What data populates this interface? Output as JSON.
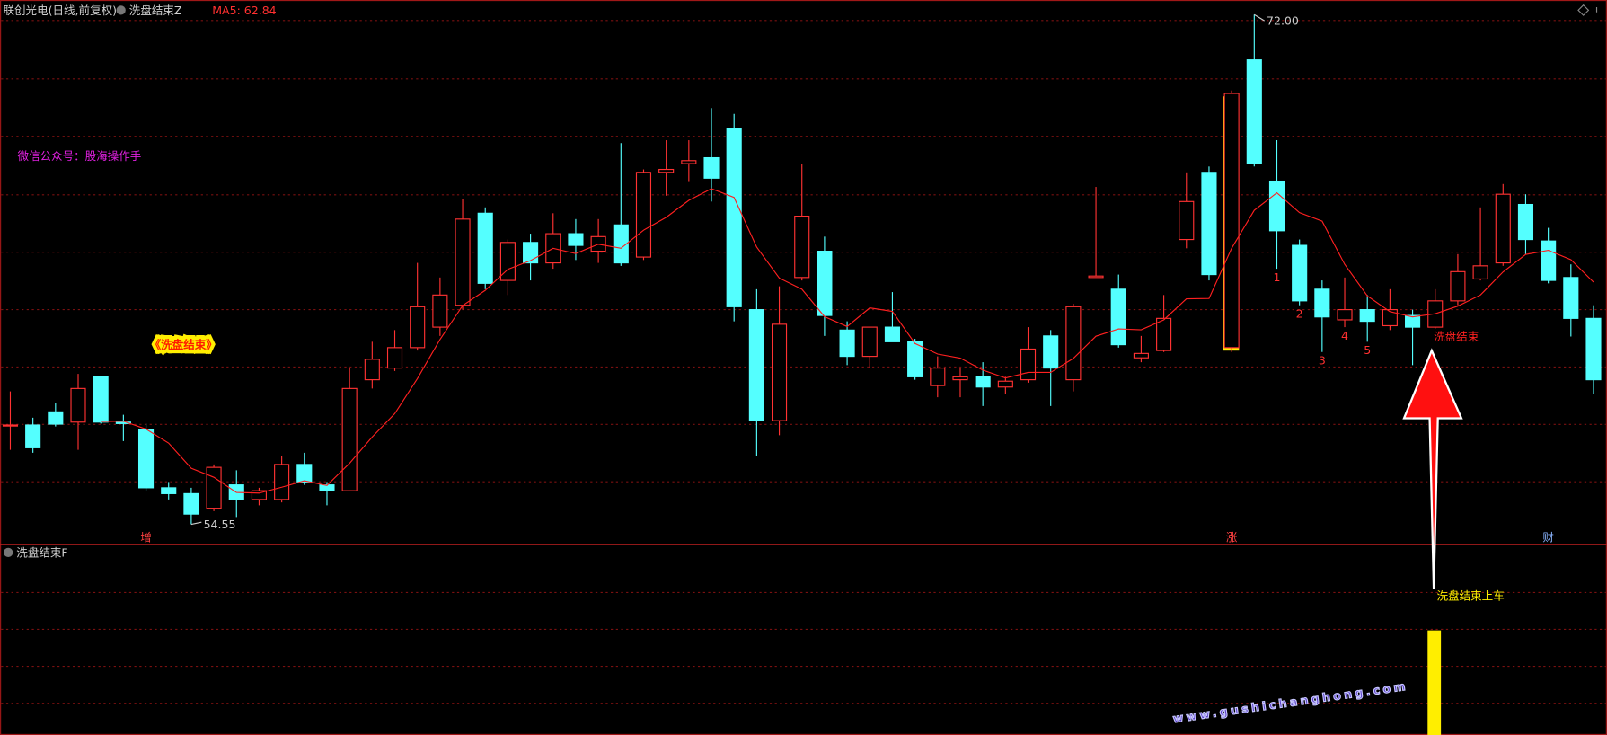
{
  "chart_data": {
    "type": "candlestick",
    "title": "联创光电(日线,前复权)",
    "indicator": "洗盘结束Z",
    "ma_label": "MA5: 62.84",
    "up_color": "#ff3232",
    "down_color": "#54ffff",
    "ma_color": "#ff2020",
    "ylim": [
      53.9,
      72.5
    ],
    "open": [
      57.95,
      57.95,
      58.4,
      58.05,
      59.6,
      58.05,
      57.8,
      55.8,
      55.6,
      55.1,
      55.9,
      55.4,
      55.4,
      56.6,
      55.9,
      55.7,
      59.5,
      59.9,
      60.6,
      61.3,
      62.05,
      65.2,
      62.9,
      64.2,
      63.5,
      64.5,
      63.9,
      64.8,
      63.7,
      66.6,
      66.9,
      67.1,
      68.1,
      61.9,
      58.1,
      63.0,
      63.9,
      61.2,
      60.3,
      61.3,
      60.8,
      59.3,
      59.5,
      59.6,
      59.25,
      59.5,
      61.0,
      59.5,
      63.0,
      62.6,
      60.25,
      60.5,
      64.3,
      66.6,
      60.6,
      70.45,
      66.3,
      64.1,
      62.6,
      61.55,
      61.9,
      61.35,
      61.7,
      61.3,
      62.2,
      62.95,
      63.5,
      65.5,
      64.25,
      63.0,
      61.6
    ],
    "close": [
      57.95,
      57.17,
      57.98,
      59.2,
      58.05,
      58.0,
      55.8,
      55.6,
      54.9,
      56.5,
      55.4,
      55.7,
      56.6,
      56.0,
      55.7,
      59.2,
      60.2,
      60.6,
      62.0,
      62.4,
      65.0,
      62.8,
      64.2,
      63.5,
      64.5,
      64.1,
      64.4,
      63.5,
      66.6,
      66.7,
      67.0,
      66.4,
      62.0,
      58.1,
      61.4,
      65.1,
      61.7,
      60.3,
      61.3,
      60.8,
      59.6,
      59.9,
      59.6,
      59.25,
      59.45,
      60.55,
      59.9,
      62.0,
      63.05,
      60.7,
      60.4,
      61.6,
      65.6,
      63.1,
      69.3,
      66.9,
      64.6,
      62.2,
      61.65,
      61.9,
      61.5,
      61.9,
      61.3,
      62.2,
      63.2,
      63.4,
      65.85,
      64.3,
      62.9,
      61.6,
      59.5
    ],
    "high": [
      59.1,
      58.2,
      58.7,
      59.7,
      59.6,
      58.3,
      58.0,
      56.0,
      55.8,
      56.6,
      56.4,
      55.8,
      56.9,
      57.0,
      56.0,
      59.9,
      60.8,
      61.2,
      63.5,
      63.0,
      65.7,
      65.4,
      64.3,
      64.5,
      65.2,
      65.0,
      65.0,
      67.6,
      66.7,
      67.7,
      67.7,
      68.8,
      68.6,
      62.6,
      62.7,
      66.9,
      64.4,
      61.5,
      61.3,
      62.5,
      60.9,
      60.3,
      59.9,
      60.1,
      59.6,
      61.3,
      61.2,
      62.1,
      66.1,
      63.1,
      61.0,
      62.4,
      66.6,
      66.8,
      69.4,
      72.0,
      67.7,
      64.3,
      62.9,
      63.0,
      62.4,
      62.6,
      61.9,
      62.6,
      63.8,
      65.4,
      66.2,
      65.85,
      64.7,
      63.45,
      62.05
    ],
    "low": [
      57.1,
      57.0,
      57.9,
      57.1,
      58.0,
      57.4,
      55.7,
      55.4,
      54.55,
      55.0,
      54.8,
      55.2,
      55.3,
      55.9,
      55.2,
      55.7,
      59.2,
      59.8,
      60.5,
      61.0,
      61.9,
      62.6,
      62.4,
      62.9,
      63.3,
      63.6,
      63.5,
      63.4,
      63.6,
      65.8,
      66.3,
      65.6,
      61.5,
      56.9,
      57.6,
      62.9,
      61.0,
      60.0,
      59.9,
      60.8,
      59.5,
      58.9,
      58.9,
      58.6,
      59.0,
      59.4,
      58.6,
      59.1,
      63.0,
      60.6,
      60.1,
      60.45,
      64.0,
      62.9,
      60.45,
      66.8,
      63.3,
      62.05,
      60.45,
      61.3,
      60.8,
      61.2,
      60.0,
      61.25,
      62.05,
      62.9,
      63.4,
      63.8,
      62.8,
      60.98,
      59.0
    ],
    "ma5": [
      null,
      null,
      null,
      null,
      58.07,
      58.08,
      57.81,
      57.33,
      56.47,
      56.16,
      55.64,
      55.62,
      55.82,
      56.04,
      55.88,
      56.64,
      57.54,
      58.34,
      59.54,
      60.88,
      62.04,
      62.56,
      63.28,
      63.58,
      64.0,
      63.82,
      64.14,
      64.0,
      64.62,
      65.06,
      65.64,
      66.04,
      65.74,
      64.04,
      62.98,
      62.6,
      61.66,
      61.32,
      61.96,
      61.84,
      60.74,
      60.38,
      60.24,
      59.83,
      59.56,
      59.75,
      59.75,
      60.23,
      60.99,
      61.24,
      61.21,
      61.55,
      62.27,
      62.28,
      64.0,
      65.3,
      65.9,
      65.22,
      64.93,
      63.45,
      62.37,
      61.83,
      61.65,
      61.76,
      62.02,
      62.4,
      63.19,
      63.79,
      63.93,
      63.61,
      62.84
    ],
    "high_label": {
      "value": 72.0,
      "label": "72.00"
    },
    "low_label": {
      "value": 54.55,
      "label": "54.55"
    },
    "markers": [
      {
        "text": "增",
        "index": 6,
        "color": "#ff4040"
      },
      {
        "text": "涨",
        "index": 54,
        "color": "#ff4040"
      },
      {
        "text": "财",
        "index": 68,
        "color": "#8ab4ff"
      }
    ],
    "counts": [
      {
        "text": "1",
        "index": 56
      },
      {
        "text": "2",
        "index": 57
      },
      {
        "text": "3",
        "index": 58
      },
      {
        "text": "4",
        "index": 59
      },
      {
        "text": "5",
        "index": 60
      }
    ],
    "signal_text": "洗盘结束",
    "lower_panel_title": "洗盘结束F",
    "entry_text": "洗盘结束上车"
  },
  "overlay": {
    "big_title": "《洗盘结束》",
    "wechat": "微信公众号：股海操作手",
    "watermark": "www.gushichanghong.com"
  }
}
